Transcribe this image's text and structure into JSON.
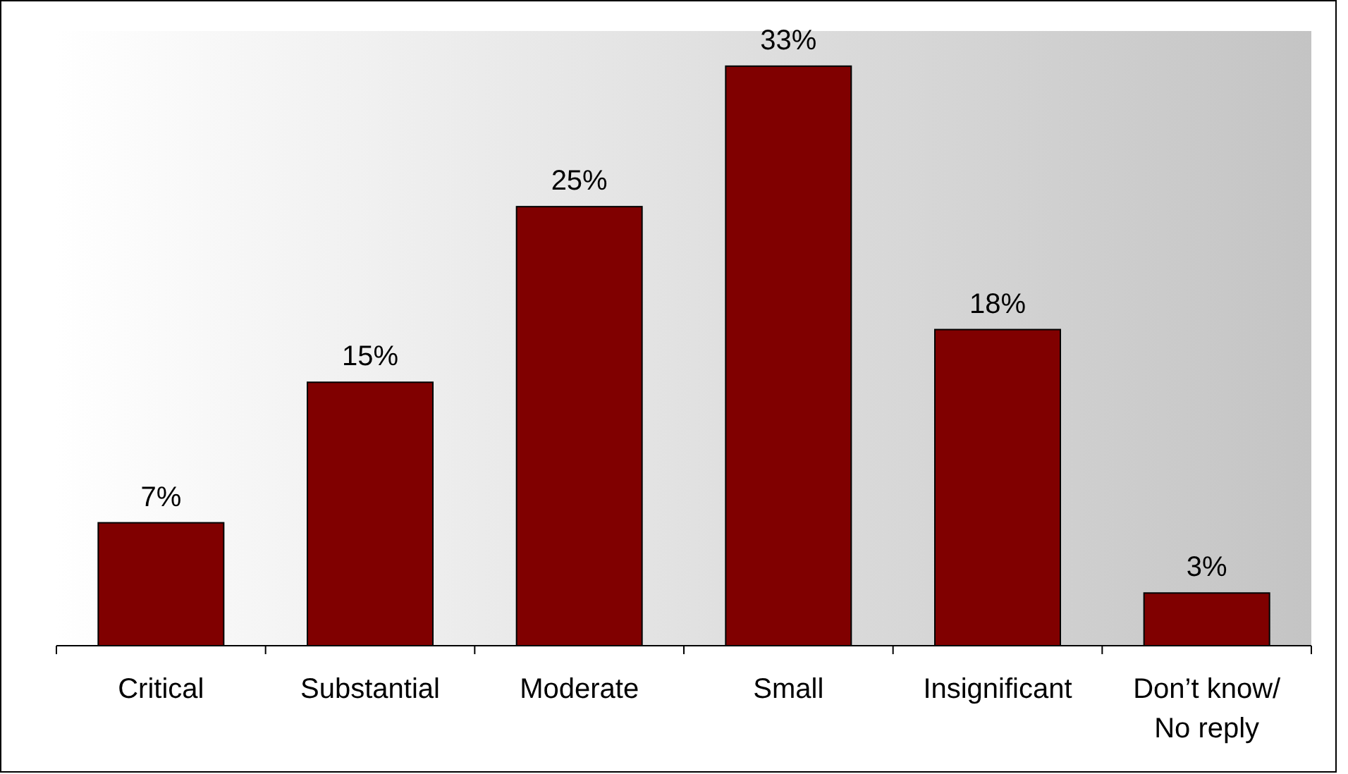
{
  "chart_data": {
    "type": "bar",
    "categories": [
      "Critical",
      "Substantial",
      "Moderate",
      "Small",
      "Insignificant",
      "Don’t know/\nNo reply"
    ],
    "values": [
      7,
      15,
      25,
      33,
      18,
      3
    ],
    "value_labels": [
      "7%",
      "15%",
      "25%",
      "33%",
      "18%",
      "3%"
    ],
    "color": "#800000",
    "ylim": [
      0,
      35
    ]
  }
}
